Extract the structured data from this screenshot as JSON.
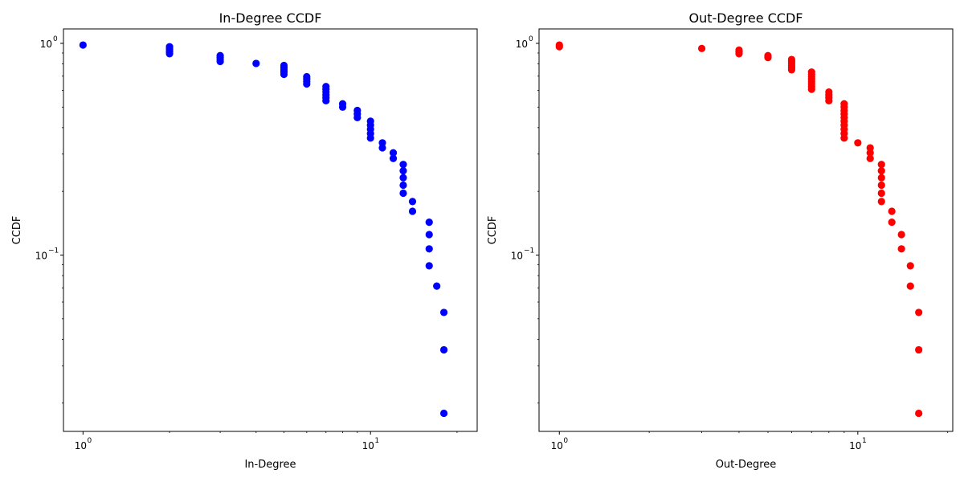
{
  "chart_data": [
    {
      "type": "scatter",
      "title": "In-Degree CCDF",
      "xlabel": "In-Degree",
      "ylabel": "CCDF",
      "xscale": "log",
      "yscale": "log",
      "xlim": [
        0.855,
        23.5
      ],
      "ylim": [
        0.0147,
        1.17
      ],
      "xticks": [
        {
          "value": 1,
          "label": "10",
          "exp": "0"
        },
        {
          "value": 10,
          "label": "10",
          "exp": "1"
        }
      ],
      "yticks": [
        {
          "value": 1,
          "label": "10",
          "exp": "0"
        },
        {
          "value": 0.1,
          "label": "10",
          "exp": "−1"
        }
      ],
      "marker_color": "#0000ff",
      "points": [
        [
          1,
          0.982
        ],
        [
          2,
          0.964
        ],
        [
          2,
          0.946
        ],
        [
          2,
          0.929
        ],
        [
          2,
          0.911
        ],
        [
          2,
          0.893
        ],
        [
          3,
          0.875
        ],
        [
          3,
          0.857
        ],
        [
          3,
          0.839
        ],
        [
          3,
          0.821
        ],
        [
          4,
          0.804
        ],
        [
          5,
          0.786
        ],
        [
          5,
          0.768
        ],
        [
          5,
          0.75
        ],
        [
          5,
          0.732
        ],
        [
          5,
          0.714
        ],
        [
          6,
          0.696
        ],
        [
          6,
          0.679
        ],
        [
          6,
          0.661
        ],
        [
          6,
          0.643
        ],
        [
          7,
          0.625
        ],
        [
          7,
          0.607
        ],
        [
          7,
          0.589
        ],
        [
          7,
          0.571
        ],
        [
          7,
          0.554
        ],
        [
          7,
          0.536
        ],
        [
          8,
          0.518
        ],
        [
          8,
          0.5
        ],
        [
          9,
          0.482
        ],
        [
          9,
          0.464
        ],
        [
          9,
          0.446
        ],
        [
          10,
          0.429
        ],
        [
          10,
          0.411
        ],
        [
          10,
          0.393
        ],
        [
          10,
          0.375
        ],
        [
          10,
          0.357
        ],
        [
          11,
          0.339
        ],
        [
          11,
          0.321
        ],
        [
          12,
          0.304
        ],
        [
          12,
          0.286
        ],
        [
          13,
          0.268
        ],
        [
          13,
          0.25
        ],
        [
          13,
          0.232
        ],
        [
          13,
          0.214
        ],
        [
          13,
          0.196
        ],
        [
          14,
          0.179
        ],
        [
          14,
          0.161
        ],
        [
          16,
          0.143
        ],
        [
          16,
          0.125
        ],
        [
          16,
          0.107
        ],
        [
          16,
          0.089
        ],
        [
          17,
          0.0714
        ],
        [
          18,
          0.0536
        ],
        [
          18,
          0.0357
        ],
        [
          18,
          0.0179
        ]
      ]
    },
    {
      "type": "scatter",
      "title": "Out-Degree CCDF",
      "xlabel": "Out-Degree",
      "ylabel": "CCDF",
      "xscale": "log",
      "yscale": "log",
      "xlim": [
        0.855,
        20.8
      ],
      "ylim": [
        0.0147,
        1.17
      ],
      "xticks": [
        {
          "value": 1,
          "label": "10",
          "exp": "0"
        },
        {
          "value": 10,
          "label": "10",
          "exp": "1"
        }
      ],
      "yticks": [
        {
          "value": 1,
          "label": "10",
          "exp": "0"
        },
        {
          "value": 0.1,
          "label": "10",
          "exp": "−1"
        }
      ],
      "marker_color": "#ff0000",
      "points": [
        [
          1,
          0.982
        ],
        [
          1,
          0.964
        ],
        [
          3,
          0.946
        ],
        [
          4,
          0.929
        ],
        [
          4,
          0.911
        ],
        [
          4,
          0.893
        ],
        [
          5,
          0.875
        ],
        [
          5,
          0.857
        ],
        [
          6,
          0.839
        ],
        [
          6,
          0.821
        ],
        [
          6,
          0.804
        ],
        [
          6,
          0.786
        ],
        [
          6,
          0.768
        ],
        [
          6,
          0.75
        ],
        [
          7,
          0.732
        ],
        [
          7,
          0.714
        ],
        [
          7,
          0.696
        ],
        [
          7,
          0.679
        ],
        [
          7,
          0.661
        ],
        [
          7,
          0.643
        ],
        [
          7,
          0.625
        ],
        [
          7,
          0.607
        ],
        [
          8,
          0.589
        ],
        [
          8,
          0.571
        ],
        [
          8,
          0.554
        ],
        [
          8,
          0.536
        ],
        [
          9,
          0.518
        ],
        [
          9,
          0.5
        ],
        [
          9,
          0.482
        ],
        [
          9,
          0.464
        ],
        [
          9,
          0.446
        ],
        [
          9,
          0.429
        ],
        [
          9,
          0.411
        ],
        [
          9,
          0.393
        ],
        [
          9,
          0.375
        ],
        [
          9,
          0.357
        ],
        [
          10,
          0.339
        ],
        [
          11,
          0.321
        ],
        [
          11,
          0.304
        ],
        [
          11,
          0.286
        ],
        [
          12,
          0.268
        ],
        [
          12,
          0.25
        ],
        [
          12,
          0.232
        ],
        [
          12,
          0.214
        ],
        [
          12,
          0.196
        ],
        [
          12,
          0.179
        ],
        [
          13,
          0.161
        ],
        [
          13,
          0.143
        ],
        [
          14,
          0.125
        ],
        [
          14,
          0.107
        ],
        [
          15,
          0.089
        ],
        [
          15,
          0.0714
        ],
        [
          16,
          0.0536
        ],
        [
          16,
          0.0357
        ],
        [
          16,
          0.0179
        ]
      ]
    }
  ]
}
